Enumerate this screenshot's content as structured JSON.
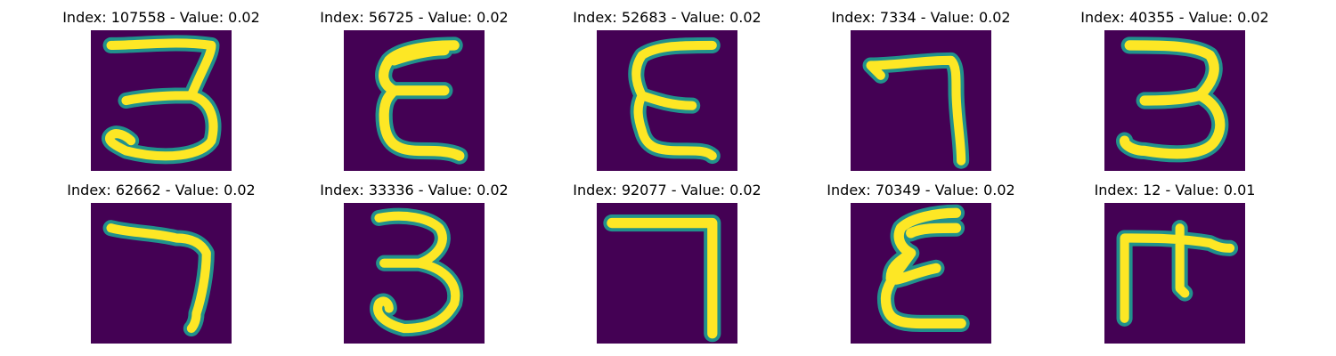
{
  "colors": {
    "background": "#440154",
    "mid": "#21918c",
    "highlight": "#fde725"
  },
  "panels": [
    {
      "title": "Index: 107558 - Value: 0.02",
      "glyph": "3"
    },
    {
      "title": "Index: 56725 - Value: 0.02",
      "glyph": "ε"
    },
    {
      "title": "Index: 52683 - Value: 0.02",
      "glyph": "ε"
    },
    {
      "title": "Index: 7334 - Value: 0.02",
      "glyph": "7"
    },
    {
      "title": "Index: 40355 - Value: 0.02",
      "glyph": "3"
    },
    {
      "title": "Index: 62662 - Value: 0.02",
      "glyph": "7"
    },
    {
      "title": "Index: 33336 - Value: 0.02",
      "glyph": "3"
    },
    {
      "title": "Index: 92077 - Value: 0.02",
      "glyph": "7"
    },
    {
      "title": "Index: 70349 - Value: 0.02",
      "glyph": "ε"
    },
    {
      "title": "Index: 12 - Value: 0.01",
      "glyph": "ғ"
    }
  ]
}
